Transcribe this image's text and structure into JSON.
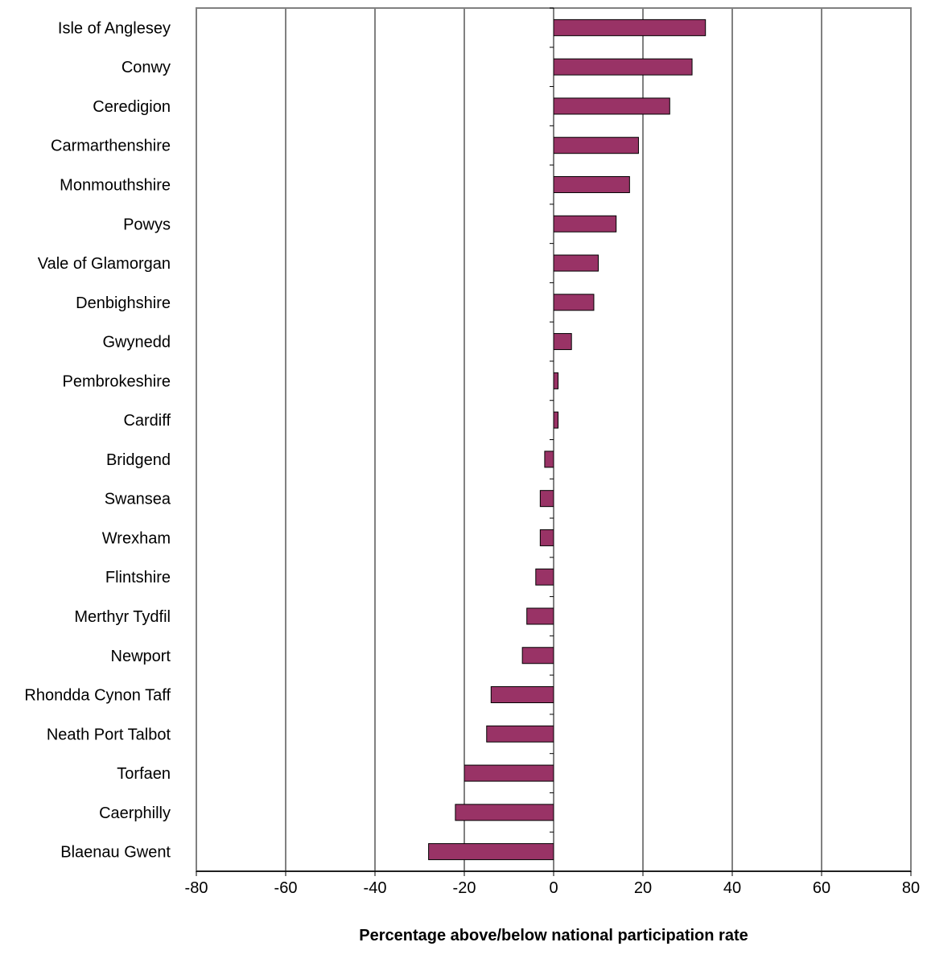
{
  "chart_data": {
    "type": "bar",
    "orientation": "horizontal",
    "title": "",
    "xlabel": "Percentage above/below national participation rate",
    "ylabel": "",
    "xlim": [
      -80,
      80
    ],
    "xticks": [
      "-80",
      "-60",
      "-40",
      "-20",
      "0",
      "20",
      "40",
      "60",
      "80"
    ],
    "grid": true,
    "legend": "none",
    "bar_color": "#993366",
    "categories": [
      "Isle of Anglesey",
      "Conwy",
      "Ceredigion",
      "Carmarthenshire",
      "Monmouthshire",
      "Powys",
      "Vale of Glamorgan",
      "Denbighshire",
      "Gwynedd",
      "Pembrokeshire",
      "Cardiff",
      "Bridgend",
      "Swansea",
      "Wrexham",
      "Flintshire",
      "Merthyr Tydfil",
      "Newport",
      "Rhondda Cynon Taff",
      "Neath Port Talbot",
      "Torfaen",
      "Caerphilly",
      "Blaenau Gwent"
    ],
    "values": [
      34,
      31,
      26,
      19,
      17,
      14,
      10,
      9,
      4,
      1,
      1,
      -2,
      -3,
      -3,
      -4,
      -6,
      -7,
      -14,
      -15,
      -20,
      -22,
      -28
    ]
  }
}
